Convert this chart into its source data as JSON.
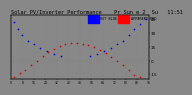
{
  "title": "Solar PV/Inverter Performance    Pr Sun e 2  Su   11:51",
  "title_fontsize": 3.8,
  "bg_color": "#888888",
  "plot_bg_color": "#888888",
  "grid_color": "#999999",
  "legend_blue_label": "HOT BLUE",
  "legend_red_label": "APPARENT RED",
  "blue_color": "#0000dd",
  "red_color": "#cc0000",
  "legend_bg_blue": "#0000ff",
  "legend_bg_red": "#ff0000",
  "ylim": [
    -20,
    50
  ],
  "xlim": [
    0,
    96
  ],
  "sun_altitude_x": [
    2,
    5,
    8,
    12,
    16,
    20,
    25,
    30,
    35,
    55,
    60,
    65,
    70,
    74,
    78,
    82,
    86,
    90,
    94
  ],
  "sun_altitude_y": [
    42,
    35,
    28,
    22,
    18,
    14,
    10,
    7,
    5,
    5,
    7,
    10,
    14,
    18,
    22,
    28,
    35,
    40,
    45
  ],
  "sun_incidence_x": [
    2,
    6,
    10,
    14,
    18,
    22,
    26,
    30,
    34,
    38,
    42,
    46,
    50,
    54,
    58,
    62,
    66,
    70,
    74,
    78,
    82,
    86,
    90,
    94
  ],
  "sun_incidence_y": [
    -18,
    -14,
    -10,
    -5,
    0,
    5,
    9,
    13,
    16,
    18,
    19,
    19,
    18,
    17,
    15,
    12,
    8,
    4,
    0,
    -5,
    -10,
    -16,
    -18,
    -22
  ],
  "ytick_positions": [
    45,
    30,
    15,
    0,
    -15
  ],
  "ytick_labels": [
    "45",
    "30",
    "15",
    "0",
    "-15"
  ],
  "dot_size": 1.5
}
